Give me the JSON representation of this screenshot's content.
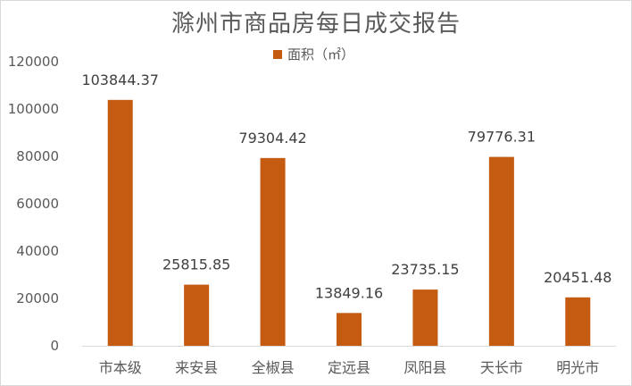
{
  "chart_data": {
    "type": "bar",
    "title": "滁州市商品房每日成交报告",
    "legend": {
      "label": "面积（㎡）",
      "position": "top"
    },
    "categories": [
      "市本级",
      "来安县",
      "全椒县",
      "定远县",
      "凤阳县",
      "天长市",
      "明光市"
    ],
    "series": [
      {
        "name": "面积（㎡）",
        "values": [
          103844.37,
          25815.85,
          79304.42,
          13849.16,
          23735.15,
          79776.31,
          20451.48
        ]
      }
    ],
    "data_labels": [
      "103844.37",
      "25815.85",
      "79304.42",
      "13849.16",
      "23735.15",
      "79776.31",
      "20451.48"
    ],
    "ylim": [
      0,
      120000
    ],
    "yticks": [
      "0",
      "20000",
      "40000",
      "60000",
      "80000",
      "100000",
      "120000"
    ],
    "grid": false,
    "colors": {
      "bar": "#c55a11",
      "text": "#595959",
      "axis": "#d9d9d9"
    }
  }
}
